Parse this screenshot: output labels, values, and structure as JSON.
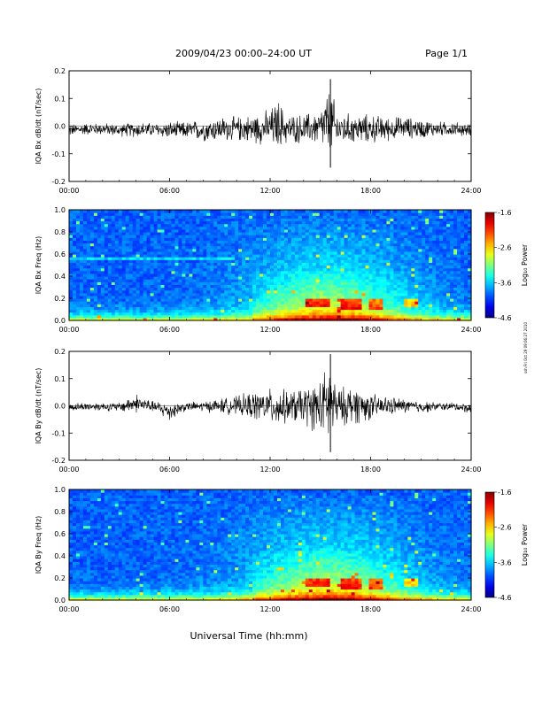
{
  "header": {
    "title": "2009/04/23  00:00–24:00 UT",
    "page": "Page 1/1"
  },
  "footer": {
    "xlabel": "Universal Time (hh:mm)",
    "side_note": "ssh Fri Oct 29 09:06:27 2010"
  },
  "chart_data": [
    {
      "type": "line",
      "ylabel": "IQA Bx dB/dt (nT/sec)",
      "x_ticks": [
        "00:00",
        "06:00",
        "12:00",
        "18:00",
        "24:00"
      ],
      "y_ticks": [
        "0.2",
        "0.1",
        "0.0",
        "-0.1",
        "-0.2"
      ],
      "ylim": [
        -0.2,
        0.2
      ],
      "xlim": [
        "00:00",
        "24:00"
      ],
      "envelope": {
        "x_hours": [
          0,
          1,
          2,
          3,
          4,
          5,
          6,
          7,
          8,
          9,
          10,
          11,
          12,
          12.5,
          13,
          14,
          15,
          15.6,
          16,
          17,
          18,
          19,
          20,
          21,
          22,
          23,
          24
        ],
        "y_max": [
          0.01,
          0.015,
          0.015,
          0.01,
          0.02,
          0.015,
          0.02,
          0.02,
          0.03,
          0.04,
          0.04,
          0.05,
          0.07,
          0.11,
          0.05,
          0.05,
          0.07,
          0.17,
          0.06,
          0.05,
          0.05,
          0.04,
          0.04,
          0.03,
          0.02,
          0.02,
          0.01
        ],
        "y_min": [
          -0.04,
          -0.035,
          -0.035,
          -0.04,
          -0.045,
          -0.04,
          -0.05,
          -0.05,
          -0.06,
          -0.06,
          -0.06,
          -0.07,
          -0.08,
          -0.1,
          -0.07,
          -0.07,
          -0.08,
          -0.15,
          -0.08,
          -0.07,
          -0.07,
          -0.06,
          -0.05,
          -0.05,
          -0.04,
          -0.04,
          -0.04
        ]
      }
    },
    {
      "type": "heatmap",
      "ylabel": "IQA Bx Freq (Hz)",
      "x_ticks": [
        "00:00",
        "06:00",
        "12:00",
        "18:00",
        "24:00"
      ],
      "y_ticks": [
        "1.0",
        "0.8",
        "0.6",
        "0.4",
        "0.2",
        "0.0"
      ],
      "ylim": [
        0,
        1.0
      ],
      "colorbar": {
        "label": "Log₁₀ Power",
        "ticks": [
          "-1.6",
          "-2.6",
          "-3.6",
          "-4.6"
        ],
        "range": [
          -4.6,
          -1.6
        ]
      }
    },
    {
      "type": "line",
      "ylabel": "IQA By dB/dt (nT/sec)",
      "x_ticks": [
        "00:00",
        "06:00",
        "12:00",
        "18:00",
        "24:00"
      ],
      "y_ticks": [
        "0.2",
        "0.1",
        "0.0",
        "-0.1",
        "-0.2"
      ],
      "ylim": [
        -0.2,
        0.2
      ],
      "xlim": [
        "00:00",
        "24:00"
      ],
      "envelope": {
        "x_hours": [
          0,
          1,
          2,
          3,
          4,
          5,
          6,
          7,
          8,
          9,
          10,
          11,
          12,
          12.5,
          13,
          14,
          15,
          15.6,
          16,
          17,
          18,
          19,
          20,
          21,
          22,
          23,
          24
        ],
        "y_max": [
          0.01,
          0.015,
          0.015,
          0.015,
          0.05,
          0.02,
          0.02,
          0.015,
          0.02,
          0.03,
          0.04,
          0.06,
          0.07,
          0.08,
          0.06,
          0.08,
          0.11,
          0.19,
          0.07,
          0.09,
          0.05,
          0.04,
          0.03,
          0.02,
          0.015,
          0.015,
          0.01
        ],
        "y_min": [
          -0.02,
          -0.02,
          -0.02,
          -0.025,
          -0.03,
          -0.025,
          -0.06,
          -0.02,
          -0.025,
          -0.03,
          -0.04,
          -0.06,
          -0.07,
          -0.09,
          -0.07,
          -0.08,
          -0.12,
          -0.17,
          -0.08,
          -0.08,
          -0.06,
          -0.04,
          -0.03,
          -0.03,
          -0.02,
          -0.02,
          -0.03
        ]
      }
    },
    {
      "type": "heatmap",
      "ylabel": "IQA By Freq (Hz)",
      "x_ticks": [
        "00:00",
        "06:00",
        "12:00",
        "18:00",
        "24:00"
      ],
      "y_ticks": [
        "1.0",
        "0.8",
        "0.6",
        "0.4",
        "0.2",
        "0.0"
      ],
      "ylim": [
        0,
        1.0
      ],
      "colorbar": {
        "label": "Log₁₀ Power",
        "ticks": [
          "-1.6",
          "-2.6",
          "-3.6",
          "-4.6"
        ],
        "range": [
          -4.6,
          -1.6
        ]
      }
    }
  ]
}
